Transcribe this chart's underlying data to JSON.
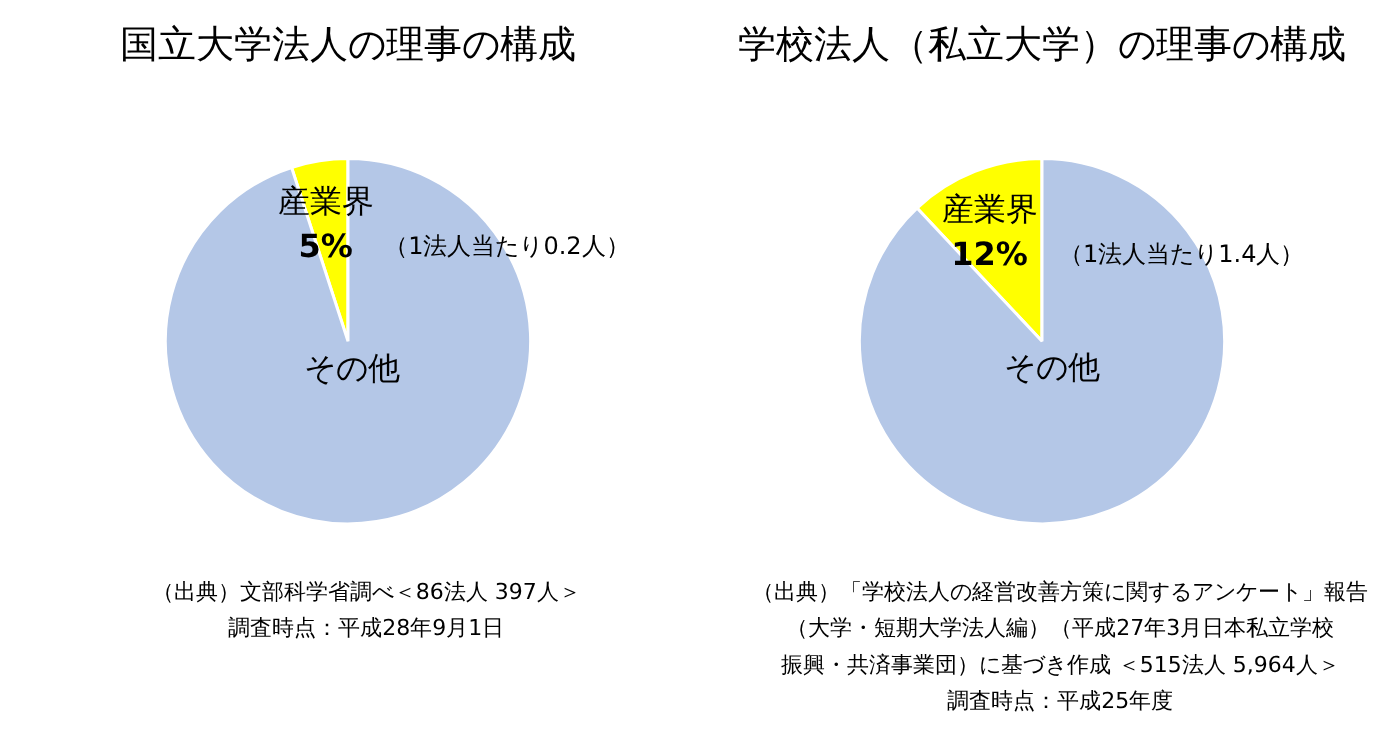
{
  "chart_data": [
    {
      "type": "pie",
      "title": "国立大学法人の理事の構成",
      "categories": [
        "産業界",
        "その他"
      ],
      "values": [
        5,
        95
      ],
      "colors": [
        "#ffff00",
        "#b4c7e7"
      ],
      "value_labels": [
        "5%",
        null
      ],
      "annotations": [
        "（1法人当たり0.2人）",
        "（出典）文部科学省調べ＜86法人 397人＞",
        "調査時点：平成28年9月1日"
      ]
    },
    {
      "type": "pie",
      "title": "学校法人（私立大学）の理事の構成",
      "categories": [
        "産業界",
        "その他"
      ],
      "values": [
        12,
        88
      ],
      "colors": [
        "#ffff00",
        "#b4c7e7"
      ],
      "value_labels": [
        "12%",
        null
      ],
      "annotations": [
        "（1法人当たり1.4人）",
        "（出典）「学校法人の経営改善方策に関するアンケート」報告",
        "（大学・短期大学法人編）（平成27年3月日本私立学校",
        "振興・共済事業団）に基づき作成 ＜515法人 5,964人＞",
        "調査時点：平成25年度"
      ]
    }
  ]
}
